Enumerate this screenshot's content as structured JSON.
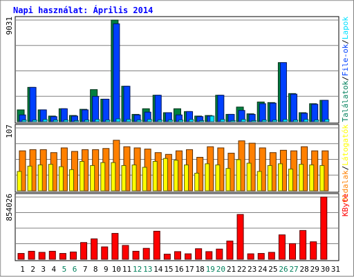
{
  "chart_data": {
    "type": "bar",
    "title": "Napi használat: Április 2014",
    "categories": [
      "1",
      "2",
      "3",
      "4",
      "5",
      "6",
      "7",
      "8",
      "9",
      "10",
      "11",
      "12",
      "13",
      "14",
      "15",
      "16",
      "17",
      "18",
      "19",
      "20",
      "21",
      "22",
      "23",
      "24",
      "25",
      "26",
      "27",
      "28",
      "29",
      "30",
      "31"
    ],
    "weekend_days": [
      "5",
      "6",
      "12",
      "13",
      "19",
      "20",
      "26",
      "27"
    ],
    "panels": [
      {
        "id": "hits",
        "ymax": 9031,
        "ymax_label": "9031",
        "legend": [
          {
            "text": "Találatok",
            "color": "#00805c"
          },
          {
            "text": "/",
            "color": "#000000"
          },
          {
            "text": "File-ok",
            "color": "#0040ff"
          },
          {
            "text": "/",
            "color": "#000000"
          },
          {
            "text": "Lapok",
            "color": "#00e0ff"
          }
        ],
        "series": [
          {
            "name": "Találatok",
            "color": "#008040",
            "values": [
              1050,
              3050,
              1050,
              500,
              1150,
              550,
              1100,
              2850,
              2000,
              9031,
              3150,
              650,
              1150,
              2350,
              800,
              1150,
              900,
              500,
              550,
              2350,
              650,
              1300,
              700,
              1750,
              1700,
              5250,
              2500,
              800,
              1600,
              1900,
              0
            ]
          },
          {
            "name": "File-ok",
            "color": "#0040ff",
            "values": [
              600,
              3050,
              1050,
              450,
              1150,
              500,
              1050,
              2250,
              2000,
              8700,
              3150,
              600,
              850,
              2350,
              800,
              600,
              900,
              450,
              500,
              2350,
              650,
              1000,
              650,
              1600,
              1650,
              5250,
              2450,
              750,
              1550,
              1900,
              0
            ]
          },
          {
            "name": "Lapok",
            "color": "#00e0ff",
            "values": [
              150,
              150,
              200,
              150,
              150,
              100,
              150,
              200,
              150,
              250,
              200,
              150,
              200,
              150,
              150,
              150,
              200,
              100,
              500,
              200,
              100,
              200,
              100,
              150,
              150,
              200,
              150,
              200,
              150,
              200,
              0
            ]
          }
        ]
      },
      {
        "id": "visits",
        "ymax": 107,
        "ymax_label": "107",
        "legend": [
          {
            "text": "Oldalak",
            "color": "#ff8000"
          },
          {
            "text": "/",
            "color": "#000000"
          },
          {
            "text": "Látogatók",
            "color": "#ffff00"
          }
        ],
        "series": [
          {
            "name": "Oldalak",
            "color": "#ff8000",
            "values": [
              68,
              70,
              70,
              65,
              73,
              67,
              70,
              70,
              72,
              86,
              75,
              73,
              71,
              65,
              62,
              68,
              70,
              57,
              75,
              73,
              64,
              85,
              81,
              73,
              65,
              69,
              68,
              75,
              68,
              68,
              0
            ]
          },
          {
            "name": "Látogatók",
            "color": "#ffff00",
            "values": [
              33,
              42,
              44,
              45,
              41,
              36,
              50,
              43,
              48,
              48,
              43,
              44,
              40,
              50,
              55,
              52,
              44,
              30,
              46,
              44,
              38,
              53,
              47,
              33,
              43,
              46,
              37,
              45,
              44,
              43,
              0
            ]
          }
        ]
      },
      {
        "id": "kbytes",
        "ymax": 854026,
        "ymax_label": "854026",
        "legend": [
          {
            "text": "KByte",
            "color": "#ff0000"
          }
        ],
        "series": [
          {
            "name": "KByte",
            "color": "#ff0000",
            "values": [
              80000,
              110000,
              95000,
              110000,
              80000,
              100000,
              230000,
              280000,
              170000,
              355000,
              190000,
              110000,
              150000,
              385000,
              70000,
              105000,
              75000,
              145000,
              105000,
              140000,
              250000,
              615000,
              75000,
              80000,
              95000,
              335000,
              215000,
              395000,
              240000,
              854026,
              0
            ]
          }
        ]
      }
    ]
  }
}
